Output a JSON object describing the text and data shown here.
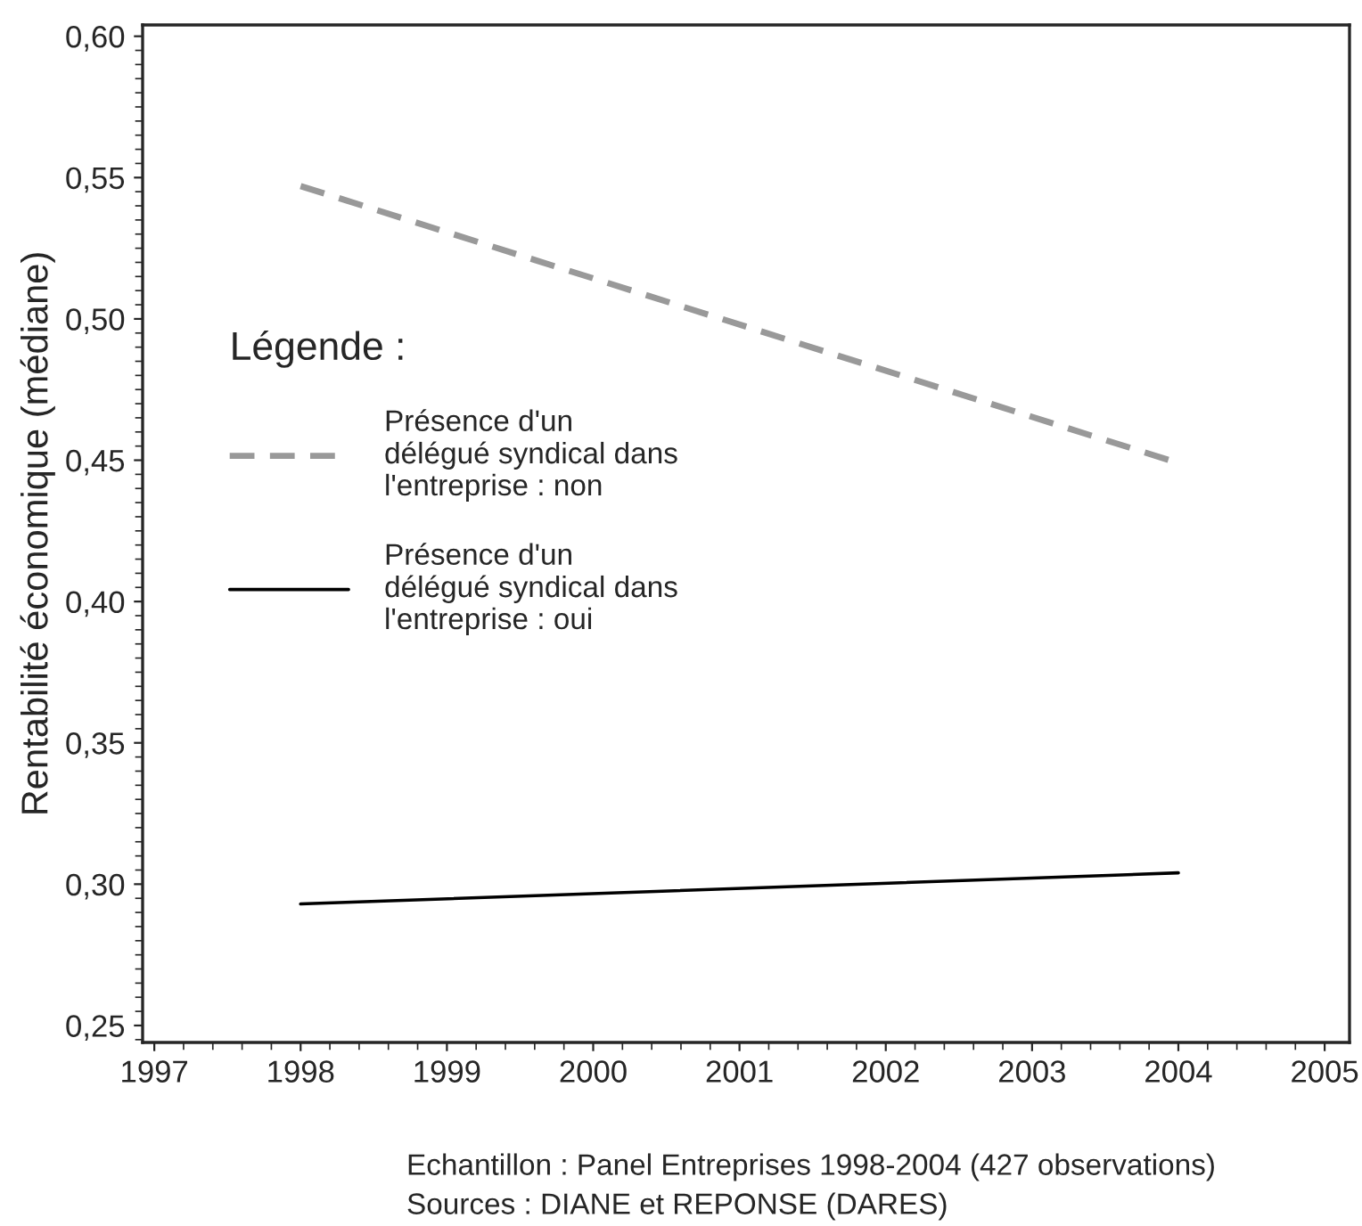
{
  "chart_data": {
    "type": "line",
    "ylabel": "Rentabilité économique (médiane)",
    "legend_title": "Légende :",
    "legend": "left",
    "x": [
      1998,
      2004
    ],
    "series": [
      {
        "name": "Présence d'un\ndélégué syndical dans\nl'entreprise : non",
        "color": "#999999",
        "line_style": "dashed",
        "values": [
          0.547,
          0.449
        ]
      },
      {
        "name": "Présence d'un\ndélégué syndical dans\nl'entreprise : oui",
        "color": "#000000",
        "line_style": "solid",
        "values": [
          0.293,
          0.304
        ]
      }
    ],
    "xlim": [
      1996.92,
      2005.17
    ],
    "xticks": [
      1997,
      1998,
      1999,
      2000,
      2001,
      2002,
      2003,
      2004,
      2005
    ],
    "ylim": [
      0.244,
      0.604
    ],
    "yticks": [
      {
        "value": 0.25,
        "label": "0,25"
      },
      {
        "value": 0.3,
        "label": "0,30"
      },
      {
        "value": 0.35,
        "label": "0,35"
      },
      {
        "value": 0.4,
        "label": "0,40"
      },
      {
        "value": 0.45,
        "label": "0,45"
      },
      {
        "value": 0.5,
        "label": "0,50"
      },
      {
        "value": 0.55,
        "label": "0,55"
      },
      {
        "value": 0.6,
        "label": "0,60"
      }
    ],
    "grid": false,
    "marker": "none",
    "annotations": [
      "Echantillon : Panel Entreprises 1998-2004 (427 observations)",
      "Sources : DIANE et REPONSE (DARES)"
    ]
  }
}
